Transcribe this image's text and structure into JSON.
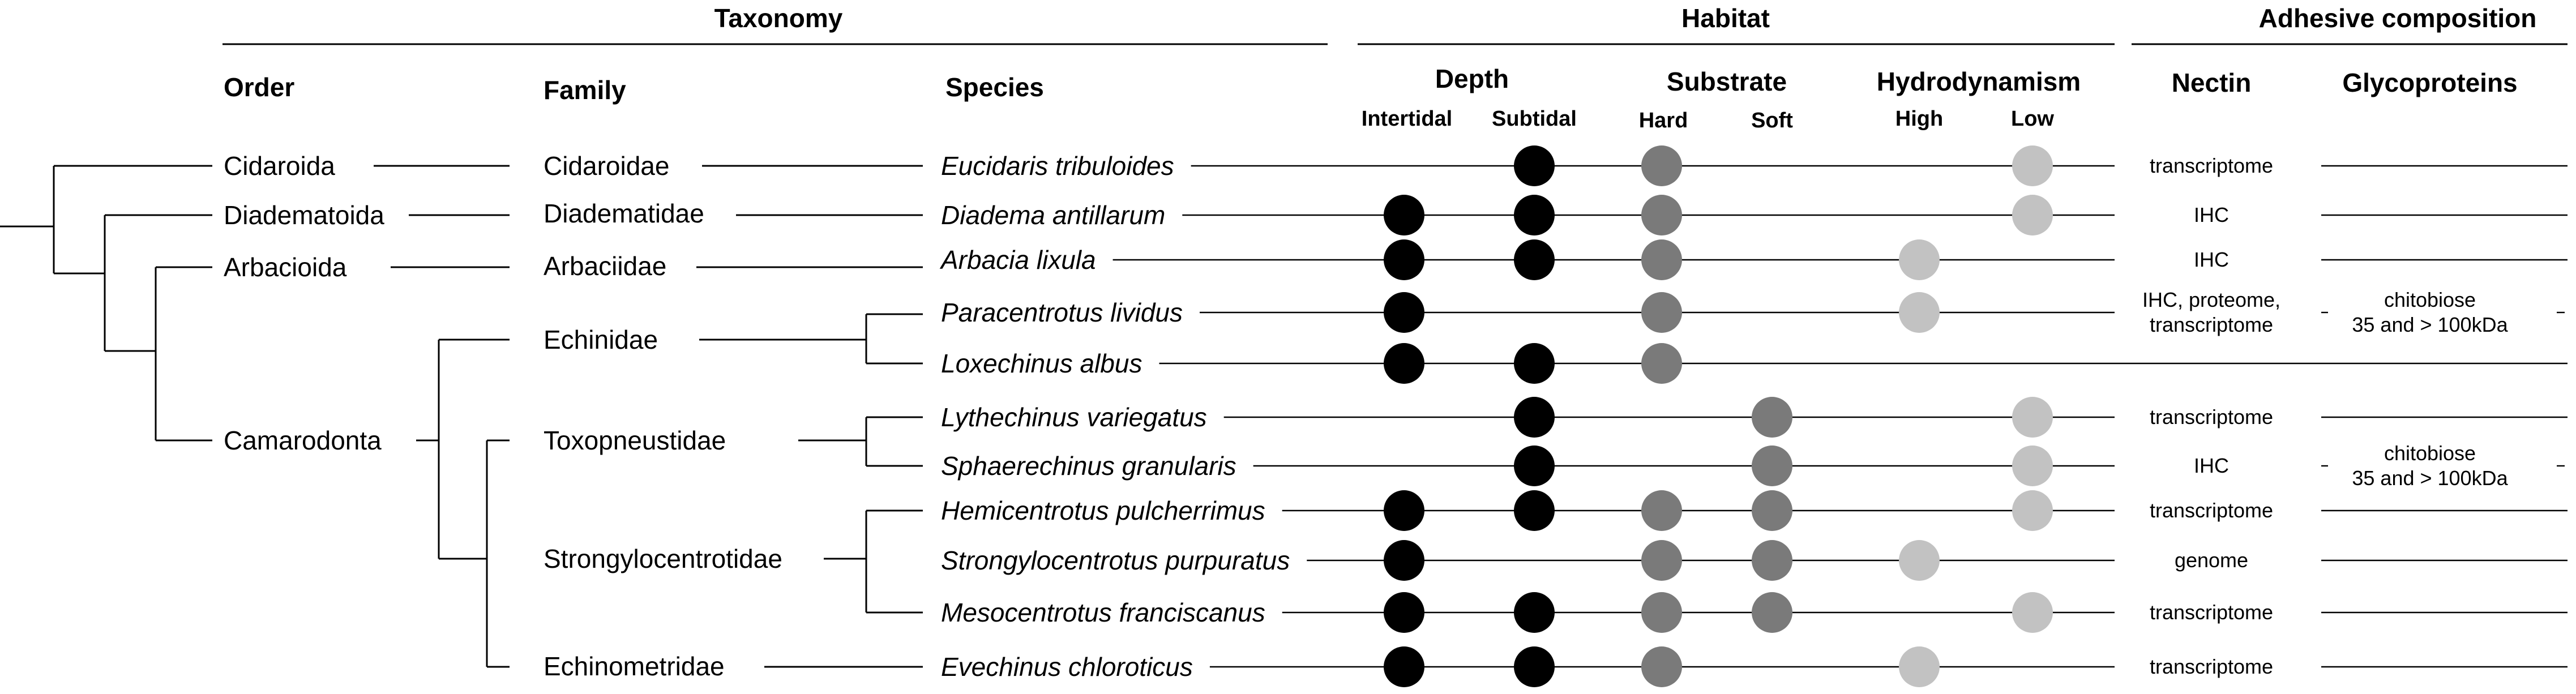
{
  "sections": {
    "taxonomy": "Taxonomy",
    "habitat": "Habitat",
    "adhesive": "Adhesive composition"
  },
  "headers": {
    "order": "Order",
    "family": "Family",
    "species": "Species",
    "depth": "Depth",
    "substrate": "Substrate",
    "hydrodynamism": "Hydrodynamism",
    "nectin": "Nectin",
    "glycoproteins": "Glycoproteins",
    "intertidal": "Intertidal",
    "subtidal": "Subtidal",
    "hard": "Hard",
    "soft": "Soft",
    "high": "High",
    "low": "Low"
  },
  "orders": [
    "Cidaroida",
    "Diadematoida",
    "Arbacioida",
    "Camarodonta"
  ],
  "families": [
    "Cidaroidae",
    "Diadematidae",
    "Arbaciidae",
    "Echinidae",
    "Toxopneustidae",
    "Strongylocentrotidae",
    "Echinometridae"
  ],
  "rows": [
    {
      "species": "Eucidaris tribuloides",
      "intertidal": false,
      "subtidal": true,
      "hard": true,
      "soft": false,
      "high": false,
      "low": true,
      "nectin": [
        "transcriptome"
      ],
      "glyco": []
    },
    {
      "species": "Diadema antillarum",
      "intertidal": true,
      "subtidal": true,
      "hard": true,
      "soft": false,
      "high": false,
      "low": true,
      "nectin": [
        "IHC"
      ],
      "glyco": []
    },
    {
      "species": "Arbacia lixula",
      "intertidal": true,
      "subtidal": true,
      "hard": true,
      "soft": false,
      "high": true,
      "low": false,
      "nectin": [
        "IHC"
      ],
      "glyco": []
    },
    {
      "species": "Paracentrotus lividus",
      "intertidal": true,
      "subtidal": false,
      "hard": true,
      "soft": false,
      "high": true,
      "low": false,
      "nectin": [
        "IHC, proteome,",
        "transcriptome"
      ],
      "glyco": [
        "chitobiose",
        "35 and > 100kDa"
      ]
    },
    {
      "species": "Loxechinus albus",
      "intertidal": true,
      "subtidal": true,
      "hard": true,
      "soft": false,
      "high": false,
      "low": false,
      "nectin": [],
      "glyco": []
    },
    {
      "species": "Lythechinus variegatus",
      "intertidal": false,
      "subtidal": true,
      "hard": false,
      "soft": true,
      "high": false,
      "low": true,
      "nectin": [
        "transcriptome"
      ],
      "glyco": []
    },
    {
      "species": "Sphaerechinus granularis",
      "intertidal": false,
      "subtidal": true,
      "hard": false,
      "soft": true,
      "high": false,
      "low": true,
      "nectin": [
        "IHC"
      ],
      "glyco": [
        "chitobiose",
        "35 and > 100kDa"
      ]
    },
    {
      "species": "Hemicentrotus pulcherrimus",
      "intertidal": true,
      "subtidal": true,
      "hard": true,
      "soft": true,
      "high": false,
      "low": true,
      "nectin": [
        "transcriptome"
      ],
      "glyco": []
    },
    {
      "species": "Strongylocentrotus purpuratus",
      "intertidal": true,
      "subtidal": false,
      "hard": true,
      "soft": true,
      "high": true,
      "low": false,
      "nectin": [
        "genome"
      ],
      "glyco": []
    },
    {
      "species": "Mesocentrotus franciscanus",
      "intertidal": true,
      "subtidal": true,
      "hard": true,
      "soft": true,
      "high": false,
      "low": true,
      "nectin": [
        "transcriptome"
      ],
      "glyco": []
    },
    {
      "species": "Evechinus chloroticus",
      "intertidal": true,
      "subtidal": true,
      "hard": true,
      "soft": false,
      "high": true,
      "low": false,
      "nectin": [
        "transcriptome"
      ],
      "glyco": []
    }
  ],
  "colors": {
    "depth_dot": "#000000",
    "substrate_dot": "#7a7a7a",
    "hydro_dot": "#c2c2c2"
  }
}
